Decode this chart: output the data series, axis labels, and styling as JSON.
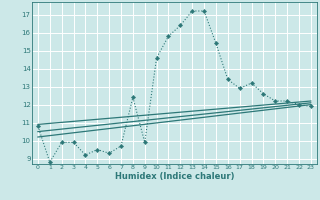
{
  "xlabel": "Humidex (Indice chaleur)",
  "bg_color": "#cce8e8",
  "grid_color": "#ffffff",
  "line_color": "#2d7878",
  "xlim": [
    -0.5,
    23.5
  ],
  "ylim": [
    8.7,
    17.7
  ],
  "yticks": [
    9,
    10,
    11,
    12,
    13,
    14,
    15,
    16,
    17
  ],
  "xticks": [
    0,
    1,
    2,
    3,
    4,
    5,
    6,
    7,
    8,
    9,
    10,
    11,
    12,
    13,
    14,
    15,
    16,
    17,
    18,
    19,
    20,
    21,
    22,
    23
  ],
  "series1_x": [
    0,
    1,
    2,
    3,
    4,
    5,
    6,
    7,
    8,
    9,
    10,
    11,
    12,
    13,
    14,
    15,
    16,
    17,
    18,
    19,
    20,
    21,
    22,
    23
  ],
  "series1_y": [
    10.8,
    8.8,
    9.9,
    9.9,
    9.2,
    9.5,
    9.3,
    9.7,
    12.4,
    9.9,
    14.6,
    15.8,
    16.4,
    17.2,
    17.2,
    15.4,
    13.4,
    12.9,
    13.2,
    12.6,
    12.2,
    12.2,
    12.0,
    11.9
  ],
  "series2_x": [
    0,
    23
  ],
  "series2_y": [
    10.2,
    12.0
  ],
  "series3_x": [
    0,
    23
  ],
  "series3_y": [
    10.5,
    12.1
  ],
  "series4_x": [
    0,
    23
  ],
  "series4_y": [
    10.9,
    12.2
  ]
}
